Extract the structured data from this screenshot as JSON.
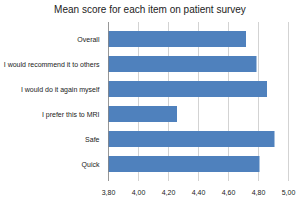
{
  "chart_data": {
    "type": "bar",
    "title": "Mean score for each item on patient survey",
    "orientation": "horizontal",
    "categories": [
      "Overall",
      "I would recommend it to others",
      "I would do it again myself",
      "I prefer this to MRI",
      "Safe",
      "Quick"
    ],
    "values": [
      4.72,
      4.79,
      4.86,
      4.26,
      4.91,
      4.81
    ],
    "color": "#4f81bd",
    "xlim": [
      3.8,
      5.0
    ],
    "xticks": [
      {
        "value": 3.8,
        "label": "3,80"
      },
      {
        "value": 4.0,
        "label": "4,00"
      },
      {
        "value": 4.2,
        "label": "4,20"
      },
      {
        "value": 4.4,
        "label": "4,40"
      },
      {
        "value": 4.6,
        "label": "4,60"
      },
      {
        "value": 4.8,
        "label": "4,80"
      },
      {
        "value": 5.0,
        "label": "5,00"
      }
    ],
    "grid": true
  }
}
